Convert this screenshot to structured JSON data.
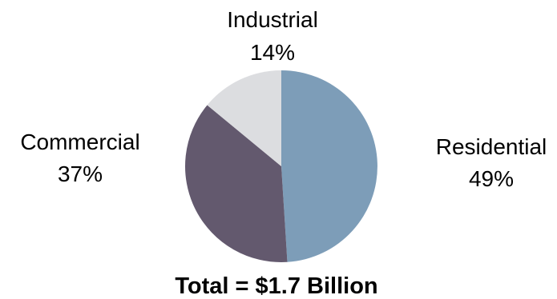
{
  "chart_data": {
    "type": "pie",
    "caption": "Total = $1.7 Billion",
    "slices": [
      {
        "label": "Residential",
        "value": 49,
        "value_label": "49%",
        "color": "#7d9db8"
      },
      {
        "label": "Commercial",
        "value": 37,
        "value_label": "37%",
        "color": "#63596e"
      },
      {
        "label": "Industrial",
        "value": 14,
        "value_label": "14%",
        "color": "#dcdde0"
      }
    ],
    "start": "12 o'clock",
    "direction": "clockwise",
    "legend": "none (labels beside slices)"
  }
}
